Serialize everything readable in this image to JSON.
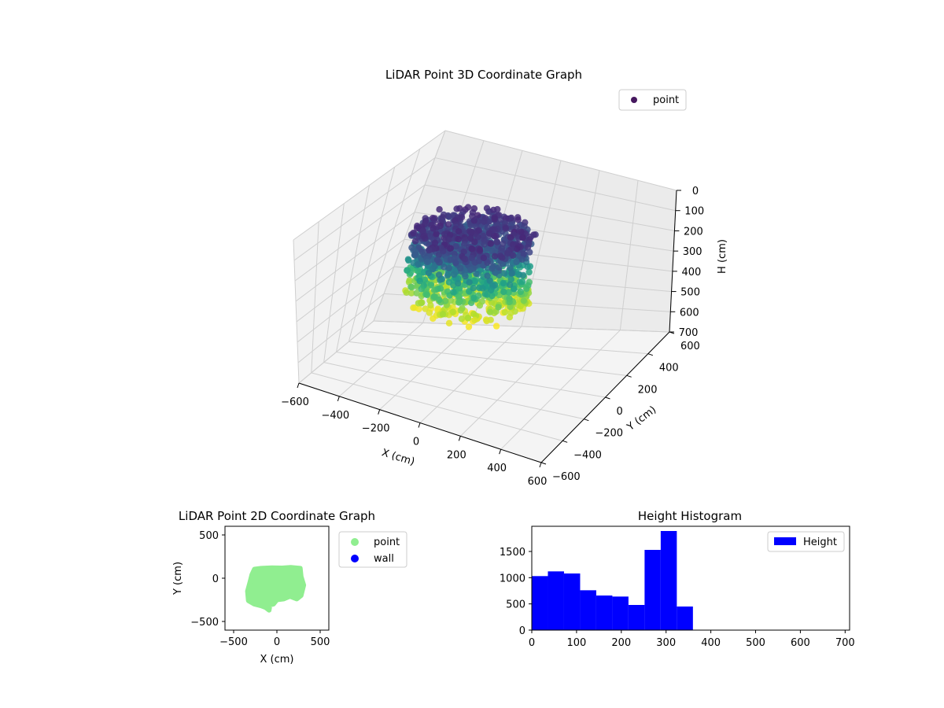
{
  "figure": {
    "background": "#ffffff"
  },
  "chart_data": [
    {
      "type": "scatter3d",
      "title": "LiDAR Point 3D Coordinate Graph",
      "xlabel": "X (cm)",
      "ylabel": "Y (cm)",
      "zlabel": "H (cm)",
      "xlim": [
        -600,
        600
      ],
      "ylim": [
        -600,
        600
      ],
      "zlim": [
        0,
        700
      ],
      "z_inverted": true,
      "xticks": [
        -600,
        -400,
        -200,
        0,
        200,
        400,
        600
      ],
      "yticks": [
        -600,
        -400,
        -200,
        0,
        200,
        400,
        600
      ],
      "zticks": [
        0,
        100,
        200,
        300,
        400,
        500,
        600,
        700
      ],
      "xtick_labels": [
        "−600",
        "−400",
        "−200",
        "0",
        "200",
        "400",
        "600"
      ],
      "ytick_labels": [
        "−600",
        "−400",
        "−200",
        "0",
        "200",
        "400",
        "600"
      ],
      "ztick_labels": [
        "0",
        "100",
        "200",
        "300",
        "400",
        "500",
        "600",
        "700"
      ],
      "grid": true,
      "colormap": "viridis",
      "legend": {
        "position": "top-right",
        "entries": [
          {
            "label": "point",
            "color": "#46185f"
          }
        ]
      },
      "point_cloud_extent": {
        "x": [
          -300,
          250
        ],
        "y": [
          -350,
          150
        ],
        "h": [
          0,
          360
        ]
      }
    },
    {
      "type": "scatter",
      "title": "LiDAR Point 2D Coordinate Graph",
      "xlabel": "X (cm)",
      "ylabel": "Y (cm)",
      "xlim": [
        -600,
        600
      ],
      "ylim": [
        -600,
        600
      ],
      "xticks": [
        -500,
        0,
        500
      ],
      "yticks": [
        -500,
        0,
        500
      ],
      "xtick_labels": [
        "−500",
        "0",
        "500"
      ],
      "ytick_labels": [
        "−500",
        "0",
        "500"
      ],
      "legend": {
        "position": "outside-right",
        "entries": [
          {
            "label": "point",
            "color": "#90ee90"
          },
          {
            "label": "wall",
            "color": "#0000ff"
          }
        ]
      },
      "footprint_outline": [
        [
          -260,
          105
        ],
        [
          -180,
          115
        ],
        [
          -60,
          120
        ],
        [
          60,
          118
        ],
        [
          160,
          125
        ],
        [
          270,
          115
        ],
        [
          280,
          20
        ],
        [
          310,
          -80
        ],
        [
          280,
          -200
        ],
        [
          230,
          -240
        ],
        [
          150,
          -210
        ],
        [
          80,
          -240
        ],
        [
          0,
          -250
        ],
        [
          -40,
          -300
        ],
        [
          -80,
          -310
        ],
        [
          -90,
          -370
        ],
        [
          -130,
          -340
        ],
        [
          -180,
          -320
        ],
        [
          -260,
          -300
        ],
        [
          -330,
          -260
        ],
        [
          -340,
          -150
        ],
        [
          -310,
          -40
        ],
        [
          -290,
          40
        ]
      ]
    },
    {
      "type": "bar",
      "subtype": "histogram",
      "title": "Height Histogram",
      "xlabel": "",
      "ylabel": "",
      "xlim": [
        0,
        710
      ],
      "ylim": [
        0,
        1980
      ],
      "xticks": [
        0,
        100,
        200,
        300,
        400,
        500,
        600,
        700
      ],
      "yticks": [
        0,
        500,
        1000,
        1500
      ],
      "xtick_labels": [
        "0",
        "100",
        "200",
        "300",
        "400",
        "500",
        "600",
        "700"
      ],
      "ytick_labels": [
        "0",
        "500",
        "1000",
        "1500"
      ],
      "bin_edges": [
        0,
        36,
        72,
        108,
        144,
        180,
        216,
        252,
        288,
        324,
        360
      ],
      "series": [
        {
          "name": "Height",
          "color": "#0000ff",
          "values": [
            1030,
            1120,
            1080,
            760,
            660,
            640,
            480,
            1530,
            1890,
            450
          ]
        }
      ],
      "legend": {
        "position": "top-right"
      }
    }
  ]
}
